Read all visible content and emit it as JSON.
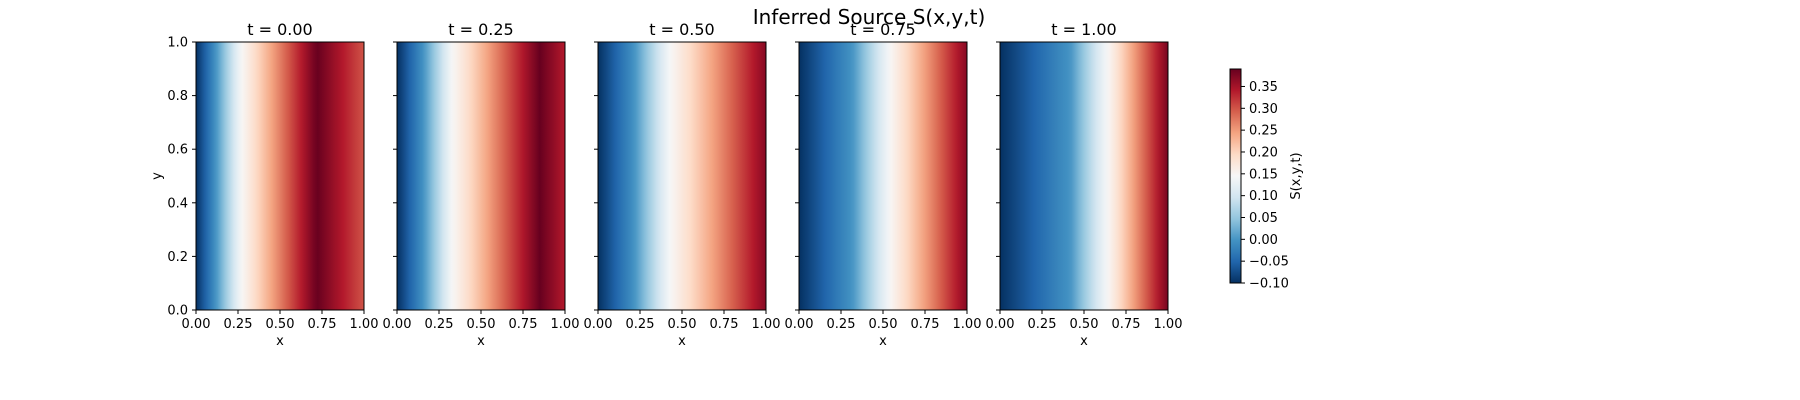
{
  "chart_data": {
    "type": "heatmap",
    "title": "Inferred Source S(x,y,t)",
    "xlabel": "x",
    "ylabel": "y",
    "xlim": [
      0,
      1
    ],
    "ylim": [
      0,
      1
    ],
    "x_ticks": [
      "0.00",
      "0.25",
      "0.50",
      "0.75",
      "1.00"
    ],
    "y_ticks": [
      "0.0",
      "0.2",
      "0.4",
      "0.6",
      "0.8",
      "1.0"
    ],
    "colormap": "RdBu_r",
    "colorbar": {
      "label": "S(x,y,t)",
      "range": [
        -0.1,
        0.39
      ],
      "ticks": [
        "−0.10",
        "−0.05",
        "0.00",
        "0.05",
        "0.10",
        "0.15",
        "0.20",
        "0.25",
        "0.30",
        "0.35"
      ],
      "tick_values": [
        -0.1,
        -0.05,
        0.0,
        0.05,
        0.1,
        0.15,
        0.2,
        0.25,
        0.3,
        0.35
      ]
    },
    "panels": [
      {
        "title": "t = 0.00",
        "t": 0.0,
        "x_at_zero": 0.12,
        "x_at_mid": 0.27,
        "peak_x": 0.72,
        "peak_value": 0.39,
        "value_at_x1": 0.3
      },
      {
        "title": "t = 0.25",
        "t": 0.25,
        "x_at_zero": 0.16,
        "x_at_mid": 0.33,
        "peak_x": 0.85,
        "peak_value": 0.39,
        "value_at_x1": 0.34
      },
      {
        "title": "t = 0.50",
        "t": 0.5,
        "x_at_zero": 0.22,
        "x_at_mid": 0.43,
        "peak_x": 1.0,
        "peak_value": 0.37,
        "value_at_x1": 0.37
      },
      {
        "title": "t = 0.75",
        "t": 0.75,
        "x_at_zero": 0.32,
        "x_at_mid": 0.54,
        "peak_x": 1.0,
        "peak_value": 0.37,
        "value_at_x1": 0.37
      },
      {
        "title": "t = 1.00",
        "t": 1.0,
        "x_at_zero": 0.42,
        "x_at_mid": 0.64,
        "peak_x": 1.0,
        "peak_value": 0.38,
        "value_at_x1": 0.38
      }
    ]
  }
}
